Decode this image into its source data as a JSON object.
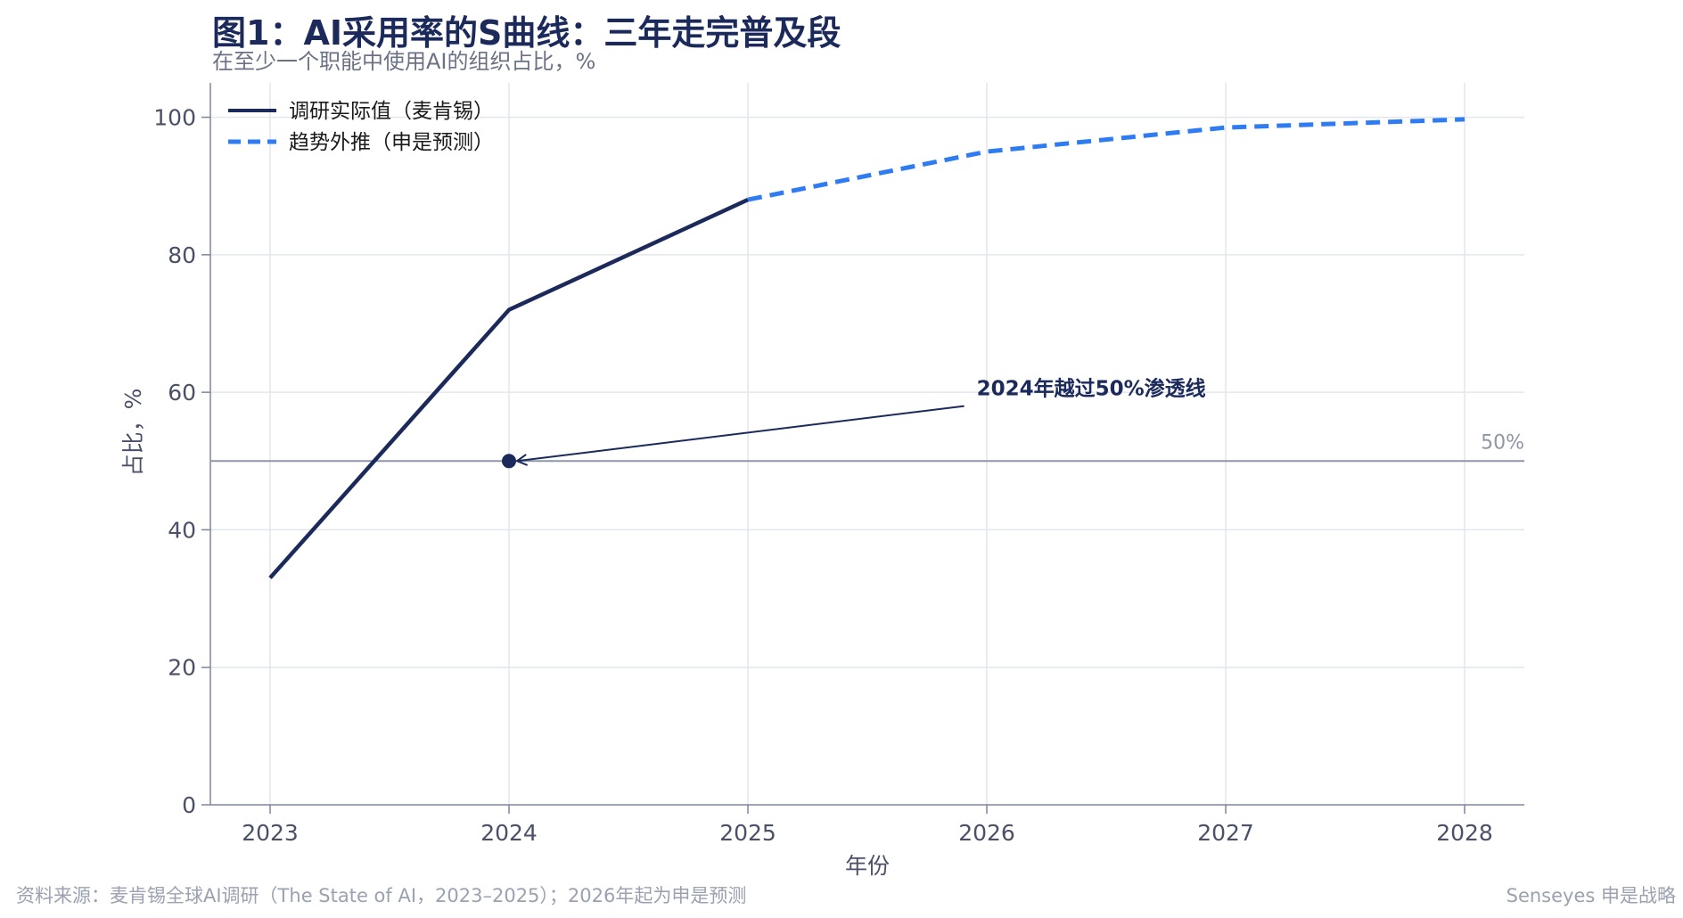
{
  "title": "图1：AI采用率的S曲线：三年走完普及段",
  "subtitle": "在至少一个职能中使用AI的组织占比，%",
  "source": "资料来源：麦肯锡全球AI调研（The State of AI，2023–2025）；2026年起为申是预测",
  "brand": "Senseyes 申是战略",
  "colors": {
    "actual": "#1b2a5a",
    "forecast": "#2f7bf2",
    "reference": "#8e96a8",
    "grid": "#e3e6ee"
  },
  "chart_data": {
    "type": "line",
    "xlabel": "年份",
    "ylabel": "占比，%",
    "xlim": [
      2022.75,
      2028.25
    ],
    "ylim": [
      0,
      105
    ],
    "x_ticks": [
      "2023",
      "2024",
      "2025",
      "2026",
      "2027",
      "2028"
    ],
    "y_ticks": [
      "0",
      "20",
      "40",
      "60",
      "80",
      "100"
    ],
    "grid": true,
    "legend_position": "top-left",
    "series": [
      {
        "name": "调研实际值（麦肯锡）",
        "style": "solid",
        "x": [
          2023,
          2024,
          2025
        ],
        "y": [
          33,
          72,
          88
        ]
      },
      {
        "name": "趋势外推（申是预测）",
        "style": "dashed",
        "x": [
          2025,
          2026,
          2027,
          2028
        ],
        "y": [
          88,
          95,
          98.5,
          99.7
        ]
      }
    ],
    "reference_line": {
      "y": 50,
      "label": "50%"
    },
    "annotation": {
      "text": "2024年越过50%渗透线",
      "point": [
        2024,
        50
      ],
      "text_at": [
        2025.95,
        58
      ]
    }
  }
}
